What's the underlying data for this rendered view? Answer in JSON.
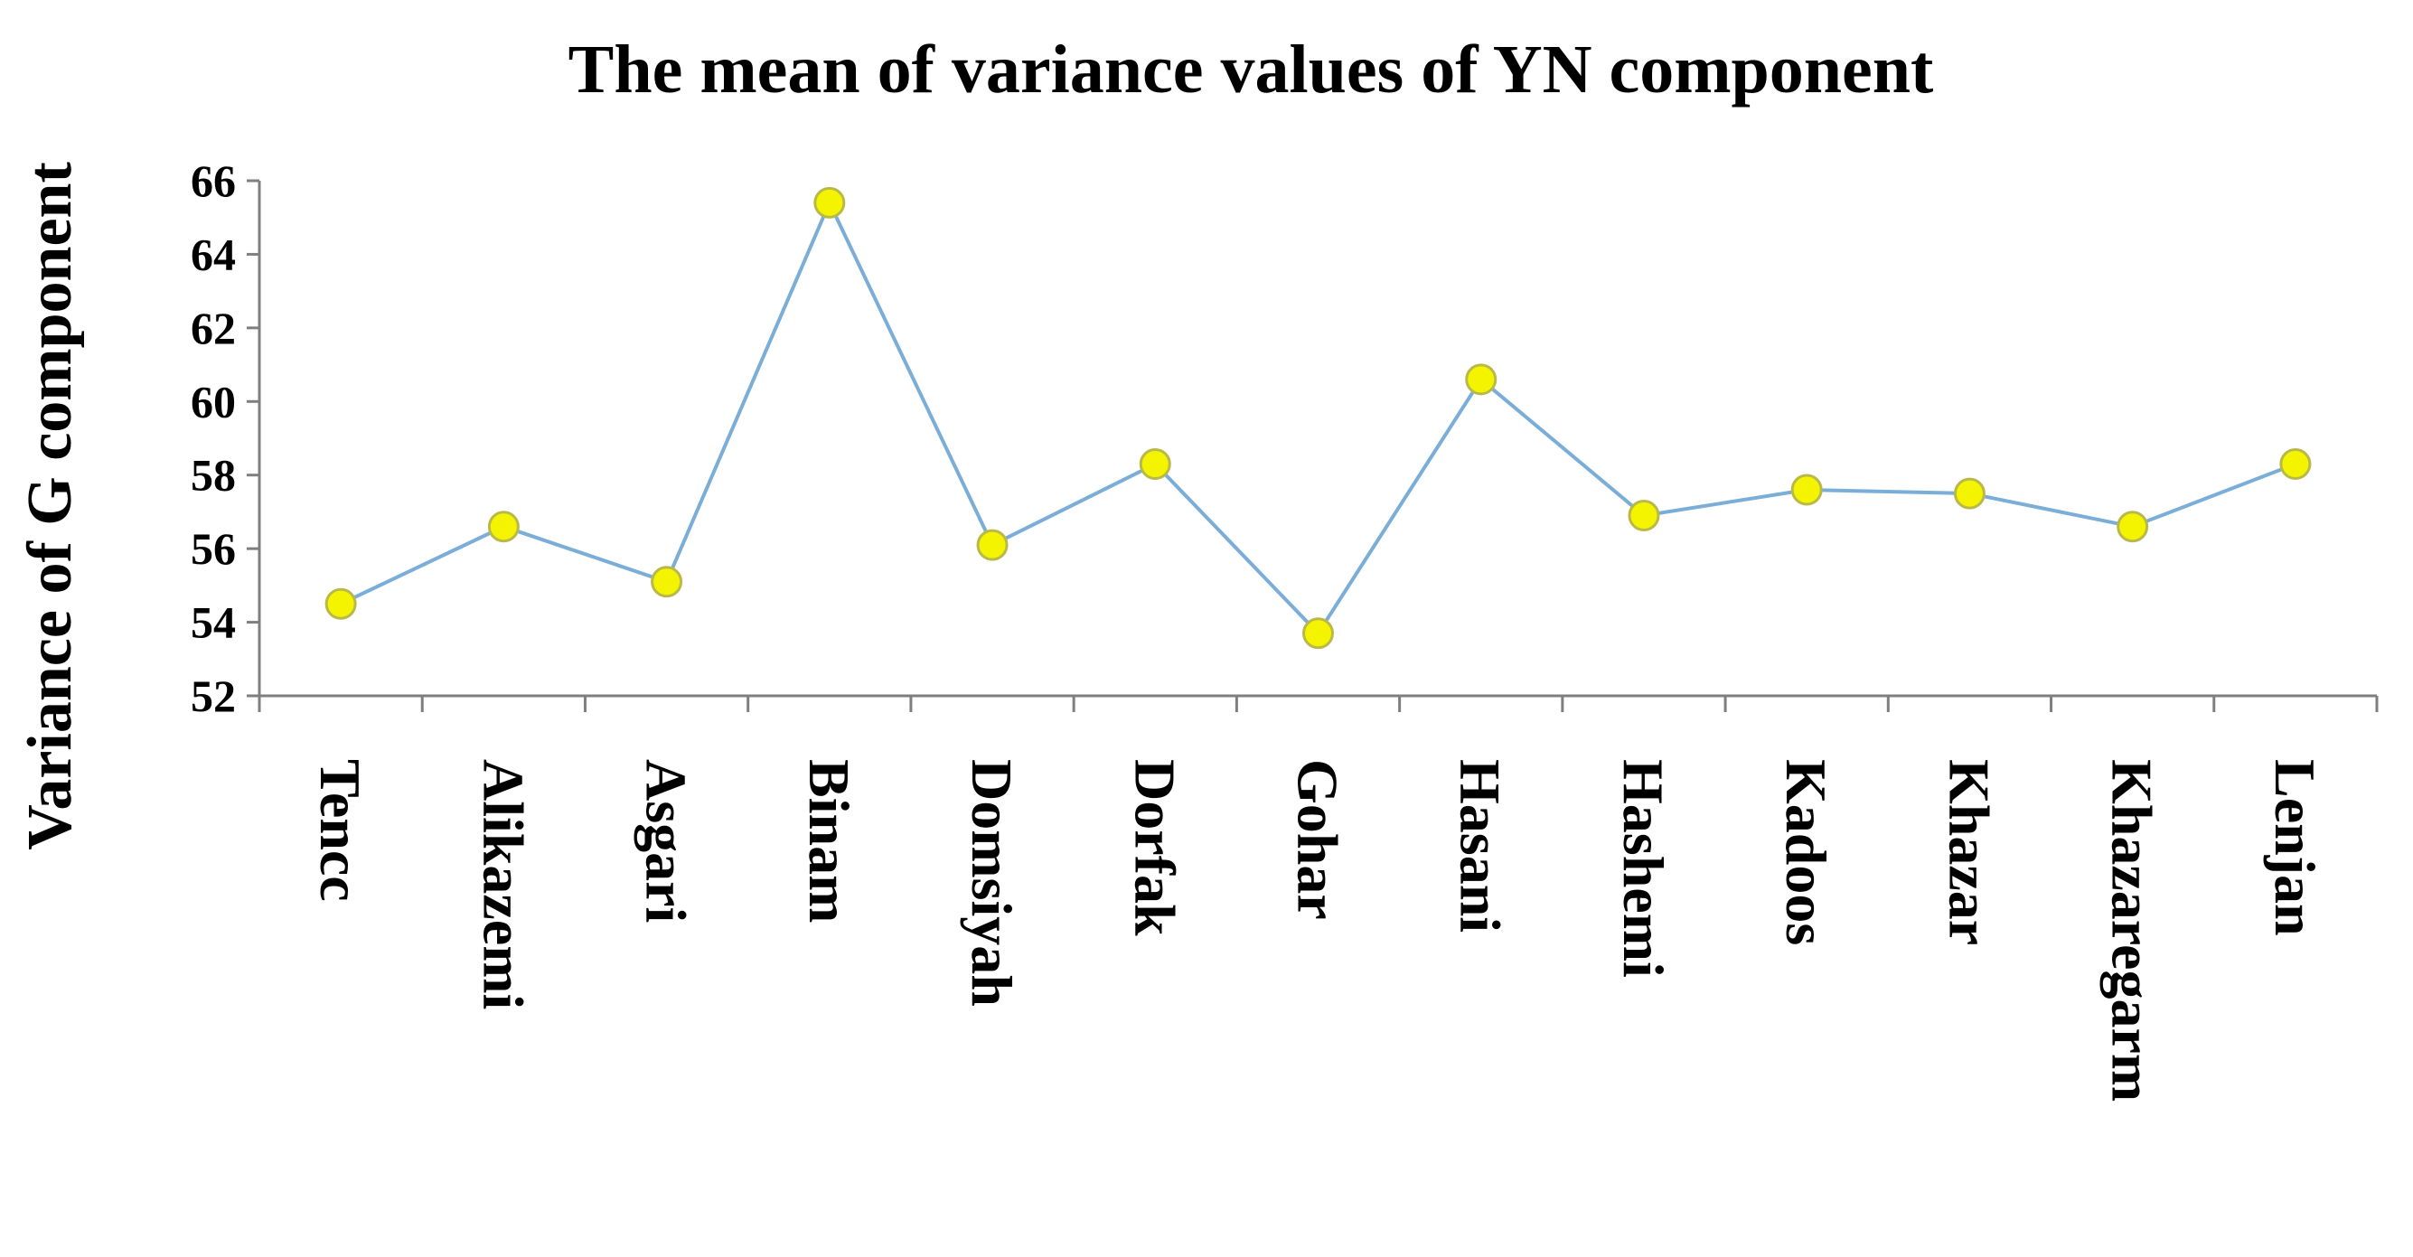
{
  "chart_data": {
    "type": "line",
    "title": "The mean of variance values of YN component",
    "ylabel": "Variance of G component",
    "xlabel": "",
    "ylim": [
      52,
      66
    ],
    "yticks": [
      52,
      54,
      56,
      58,
      60,
      62,
      64,
      66
    ],
    "grid": false,
    "legend": "none",
    "categories": [
      "Tencc",
      "Alikazemi",
      "Asgari",
      "Binam",
      "Domsiyah",
      "Dorfak",
      "Gohar",
      "Hasani",
      "Hashemi",
      "Kadoos",
      "Khazar",
      "Khazaregarm",
      "Lenjan"
    ],
    "series": [
      {
        "values": [
          54.5,
          56.6,
          55.1,
          65.4,
          56.1,
          58.3,
          53.7,
          60.6,
          56.9,
          57.6,
          57.5,
          56.6,
          58.3
        ]
      }
    ],
    "colors": {
      "line": "#7aaed8",
      "marker_fill": "#f4f400",
      "marker_stroke": "#b9b94a",
      "axis": "#7f7f7f",
      "text": "#000000"
    }
  }
}
